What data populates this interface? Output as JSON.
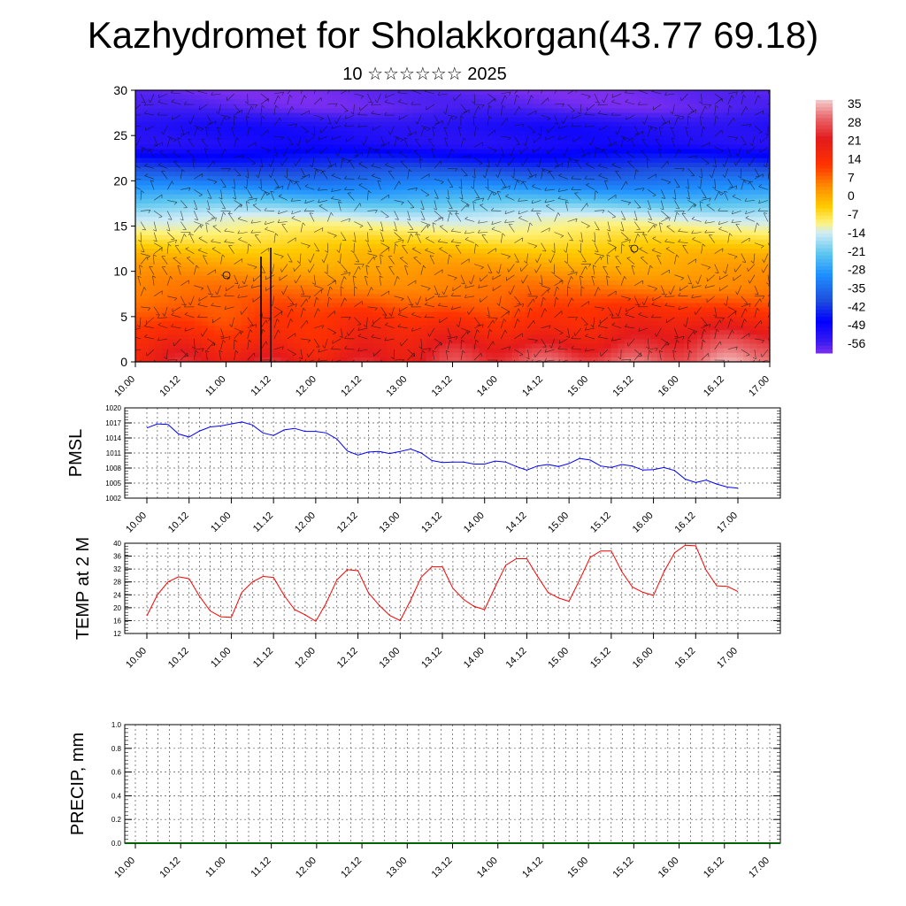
{
  "title": "Kazhydromet for Sholakkorgan(43.77 69.18)",
  "subtitle": "10 ☆☆☆☆☆☆ 2025",
  "time_tick_labels": [
    "10.00",
    "10.12",
    "11.00",
    "11.12",
    "12.00",
    "12.12",
    "13.00",
    "13.12",
    "14.00",
    "14.12",
    "15.00",
    "15.12",
    "16.00",
    "16.12",
    "17.00"
  ],
  "chart_data": [
    {
      "type": "heatmap",
      "x": [
        "10.00",
        "10.12",
        "11.00",
        "11.12",
        "12.00",
        "12.12",
        "13.00",
        "13.12",
        "14.00",
        "14.12",
        "15.00",
        "15.12",
        "16.00",
        "16.12",
        "17.00"
      ],
      "ylim": [
        0,
        30
      ],
      "yticks": [
        0,
        5,
        10,
        15,
        20,
        25,
        30
      ],
      "colorbar": {
        "labels": [
          "35",
          "28",
          "21",
          "14",
          "7",
          "0",
          "-7",
          "-14",
          "-21",
          "-28",
          "-35",
          "-42",
          "-49",
          "-56"
        ],
        "range": [
          -60,
          37
        ],
        "stops": [
          {
            "v": 37,
            "c": "#f4cccc"
          },
          {
            "v": 30,
            "c": "#e9666a"
          },
          {
            "v": 22,
            "c": "#e31a1c"
          },
          {
            "v": 12,
            "c": "#ff3300"
          },
          {
            "v": 4,
            "c": "#ff8a00"
          },
          {
            "v": -4,
            "c": "#ffcc00"
          },
          {
            "v": -10,
            "c": "#fff27a"
          },
          {
            "v": -14,
            "c": "#d0ecf6"
          },
          {
            "v": -22,
            "c": "#5cc6ef"
          },
          {
            "v": -30,
            "c": "#1e90ff"
          },
          {
            "v": -40,
            "c": "#1e4ddd"
          },
          {
            "v": -48,
            "c": "#0000ff"
          },
          {
            "v": -56,
            "c": "#3c1cf0"
          },
          {
            "v": -60,
            "c": "#7d2ff0"
          }
        ]
      },
      "vertical_profile": [
        {
          "z": 0,
          "v": 20
        },
        {
          "z": 3,
          "v": 14
        },
        {
          "z": 6,
          "v": 9
        },
        {
          "z": 9,
          "v": 4
        },
        {
          "z": 12,
          "v": -2
        },
        {
          "z": 14,
          "v": -8
        },
        {
          "z": 16,
          "v": -14
        },
        {
          "z": 18,
          "v": -24
        },
        {
          "z": 20,
          "v": -34
        },
        {
          "z": 22,
          "v": -44
        },
        {
          "z": 24,
          "v": -52
        },
        {
          "z": 26,
          "v": -52
        },
        {
          "z": 28,
          "v": -58
        },
        {
          "z": 30,
          "v": -59
        }
      ],
      "surface_warming_by_day": [
        0,
        1,
        2,
        4,
        6,
        9,
        12,
        14
      ]
    },
    {
      "type": "line",
      "ylabel": "PMSL",
      "ylim": [
        1002,
        1020
      ],
      "yticks": [
        1002,
        1005,
        1008,
        1011,
        1014,
        1017,
        1020
      ],
      "x": [
        "10.00",
        "10.03",
        "10.06",
        "10.09",
        "10.12",
        "10.15",
        "10.18",
        "10.21",
        "11.00",
        "11.03",
        "11.06",
        "11.09",
        "11.12",
        "11.15",
        "11.18",
        "11.21",
        "12.00",
        "12.03",
        "12.06",
        "12.09",
        "12.12",
        "12.15",
        "12.18",
        "12.21",
        "13.00",
        "13.03",
        "13.06",
        "13.09",
        "13.12",
        "13.15",
        "13.18",
        "13.21",
        "14.00",
        "14.03",
        "14.06",
        "14.09",
        "14.12",
        "14.15",
        "14.18",
        "14.21",
        "15.00",
        "15.03",
        "15.06",
        "15.09",
        "15.12",
        "15.15",
        "15.18",
        "15.21",
        "16.00",
        "16.03",
        "16.06",
        "16.09",
        "16.12",
        "16.15",
        "16.18",
        "16.21",
        "17.00"
      ],
      "series": [
        {
          "color": "#0000ff",
          "values": [
            1016,
            1016.8,
            1016.7,
            1014.8,
            1014.2,
            1015.4,
            1016.2,
            1016.4,
            1016.8,
            1017.2,
            1016.6,
            1015,
            1014.5,
            1015.6,
            1015.9,
            1015.3,
            1015.3,
            1015,
            1013.8,
            1011.4,
            1010.6,
            1011.2,
            1011.3,
            1010.9,
            1011.3,
            1011.8,
            1011,
            1009.5,
            1009.1,
            1009.2,
            1009.2,
            1008.8,
            1008.8,
            1009.4,
            1009.2,
            1008.3,
            1007.6,
            1008.4,
            1008.7,
            1008.3,
            1008.9,
            1009.9,
            1009.6,
            1008.4,
            1008.1,
            1008.7,
            1008.4,
            1007.6,
            1007.7,
            1008.1,
            1007.5,
            1005.8,
            1005.1,
            1005.6,
            1004.8,
            1004.2,
            1004
          ]
        }
      ]
    },
    {
      "type": "line",
      "ylabel": "TEMP at 2 M",
      "ylim": [
        12,
        40
      ],
      "yticks": [
        12,
        16,
        20,
        24,
        28,
        32,
        36,
        40
      ],
      "x": [
        "10.00",
        "10.03",
        "10.06",
        "10.09",
        "10.12",
        "10.15",
        "10.18",
        "10.21",
        "11.00",
        "11.03",
        "11.06",
        "11.09",
        "11.12",
        "11.15",
        "11.18",
        "11.21",
        "12.00",
        "12.03",
        "12.06",
        "12.09",
        "12.12",
        "12.15",
        "12.18",
        "12.21",
        "13.00",
        "13.03",
        "13.06",
        "13.09",
        "13.12",
        "13.15",
        "13.18",
        "13.21",
        "14.00",
        "14.03",
        "14.06",
        "14.09",
        "14.12",
        "14.15",
        "14.18",
        "14.21",
        "15.00",
        "15.03",
        "15.06",
        "15.09",
        "15.12",
        "15.15",
        "15.18",
        "15.21",
        "16.00",
        "16.03",
        "16.06",
        "16.09",
        "16.12",
        "16.15",
        "16.18",
        "16.21",
        "17.00"
      ],
      "series": [
        {
          "color": "#ff0000",
          "values": [
            17.5,
            24,
            28,
            29.6,
            29,
            23.5,
            19,
            17.2,
            17,
            24.8,
            28,
            29.7,
            29.4,
            23.8,
            19.4,
            17.8,
            15.8,
            21.5,
            28.6,
            31.8,
            31.5,
            24.6,
            20.8,
            17.6,
            16,
            22.4,
            29.5,
            32.7,
            32.7,
            26,
            22.6,
            20.4,
            19.4,
            26.4,
            33.2,
            35.2,
            35.2,
            29.8,
            24.8,
            23,
            22,
            28.6,
            35.6,
            37.6,
            37.6,
            31.2,
            26.4,
            24.8,
            23.8,
            31.2,
            37,
            39.4,
            39.2,
            31.6,
            26.8,
            26.6,
            25
          ]
        }
      ]
    },
    {
      "type": "bar",
      "ylabel": "PRECIP, mm",
      "ylim": [
        0.0,
        1.0
      ],
      "yticks": [
        "0.0",
        "0.2",
        "0.4",
        "0.6",
        "0.8",
        "1.0"
      ],
      "x": [
        "10.00",
        "10.03",
        "10.06",
        "10.09",
        "10.12",
        "10.15",
        "10.18",
        "10.21",
        "11.00",
        "11.03",
        "11.06",
        "11.09",
        "11.12",
        "11.15",
        "11.18",
        "11.21",
        "12.00",
        "12.03",
        "12.06",
        "12.09",
        "12.12",
        "12.15",
        "12.18",
        "12.21",
        "13.00",
        "13.03",
        "13.06",
        "13.09",
        "13.12",
        "13.15",
        "13.18",
        "13.21",
        "14.00",
        "14.03",
        "14.06",
        "14.09",
        "14.12",
        "14.15",
        "14.18",
        "14.21",
        "15.00",
        "15.03",
        "15.06",
        "15.09",
        "15.12",
        "15.15",
        "15.18",
        "15.21",
        "16.00",
        "16.03",
        "16.06",
        "16.09",
        "16.12",
        "16.15",
        "16.18",
        "16.21",
        "17.00"
      ],
      "series": [
        {
          "color": "#006400",
          "values": [
            0,
            0,
            0,
            0,
            0,
            0,
            0,
            0,
            0,
            0,
            0,
            0,
            0,
            0,
            0,
            0,
            0,
            0,
            0,
            0,
            0,
            0,
            0,
            0,
            0,
            0,
            0,
            0,
            0,
            0,
            0,
            0,
            0,
            0,
            0,
            0,
            0,
            0,
            0,
            0,
            0,
            0,
            0,
            0,
            0,
            0,
            0,
            0,
            0,
            0,
            0,
            0,
            0,
            0,
            0,
            0,
            0
          ]
        }
      ]
    }
  ]
}
